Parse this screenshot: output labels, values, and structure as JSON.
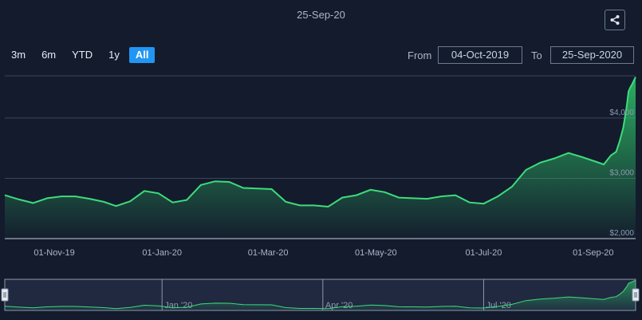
{
  "header": {
    "date": "25-Sep-20",
    "share_icon": "share-icon"
  },
  "range_selector": {
    "buttons": [
      {
        "label": "3m",
        "active": false
      },
      {
        "label": "6m",
        "active": false
      },
      {
        "label": "YTD",
        "active": false
      },
      {
        "label": "1y",
        "active": false
      },
      {
        "label": "All",
        "active": true
      }
    ],
    "from_label": "From",
    "from_value": "04-Oct-2019",
    "to_label": "To",
    "to_value": "25-Sep-2020"
  },
  "chart_data": {
    "type": "area",
    "title": "",
    "xlabel": "",
    "ylabel": "",
    "ylim": [
      2000,
      4700
    ],
    "y_ticks": [
      2000,
      3000,
      4000
    ],
    "y_tick_labels": [
      "$2,000",
      "$3,000",
      "$4,000"
    ],
    "x_tick_labels": [
      "01-Nov-19",
      "01-Jan-20",
      "01-Mar-20",
      "01-May-20",
      "01-Jul-20",
      "01-Sep-20"
    ],
    "x_tick_dates": [
      "2019-11-01",
      "2020-01-01",
      "2020-03-01",
      "2020-05-01",
      "2020-07-01",
      "2020-09-01"
    ],
    "x_range": [
      "2019-10-04",
      "2020-09-25"
    ],
    "grid": true,
    "legend": "none",
    "line_color": "#3ddc7a",
    "series": [
      {
        "values": [
          [
            "2019-10-04",
            2720
          ],
          [
            "2019-10-12",
            2650
          ],
          [
            "2019-10-20",
            2590
          ],
          [
            "2019-10-28",
            2670
          ],
          [
            "2019-11-05",
            2700
          ],
          [
            "2019-11-13",
            2700
          ],
          [
            "2019-11-21",
            2660
          ],
          [
            "2019-11-29",
            2610
          ],
          [
            "2019-12-06",
            2540
          ],
          [
            "2019-12-14",
            2620
          ],
          [
            "2019-12-22",
            2790
          ],
          [
            "2019-12-30",
            2750
          ],
          [
            "2020-01-07",
            2600
          ],
          [
            "2020-01-15",
            2640
          ],
          [
            "2020-01-23",
            2890
          ],
          [
            "2020-01-31",
            2950
          ],
          [
            "2020-02-08",
            2940
          ],
          [
            "2020-02-16",
            2840
          ],
          [
            "2020-02-24",
            2830
          ],
          [
            "2020-03-03",
            2820
          ],
          [
            "2020-03-11",
            2610
          ],
          [
            "2020-03-19",
            2550
          ],
          [
            "2020-03-27",
            2550
          ],
          [
            "2020-04-04",
            2530
          ],
          [
            "2020-04-12",
            2680
          ],
          [
            "2020-04-20",
            2720
          ],
          [
            "2020-04-28",
            2810
          ],
          [
            "2020-05-06",
            2770
          ],
          [
            "2020-05-14",
            2680
          ],
          [
            "2020-05-22",
            2670
          ],
          [
            "2020-05-30",
            2660
          ],
          [
            "2020-06-07",
            2700
          ],
          [
            "2020-06-15",
            2720
          ],
          [
            "2020-06-23",
            2600
          ],
          [
            "2020-07-01",
            2580
          ],
          [
            "2020-07-09",
            2700
          ],
          [
            "2020-07-17",
            2860
          ],
          [
            "2020-07-25",
            3140
          ],
          [
            "2020-08-02",
            3260
          ],
          [
            "2020-08-10",
            3330
          ],
          [
            "2020-08-18",
            3420
          ],
          [
            "2020-08-26",
            3350
          ],
          [
            "2020-09-03",
            3270
          ],
          [
            "2020-09-07",
            3230
          ],
          [
            "2020-09-11",
            3380
          ],
          [
            "2020-09-14",
            3440
          ],
          [
            "2020-09-16",
            3620
          ],
          [
            "2020-09-18",
            3840
          ],
          [
            "2020-09-20",
            4200
          ],
          [
            "2020-09-21",
            4440
          ],
          [
            "2020-09-22",
            4510
          ],
          [
            "2020-09-23",
            4560
          ],
          [
            "2020-09-25",
            4680
          ]
        ]
      }
    ],
    "navigator": {
      "x_tick_labels": [
        "Jan '20",
        "Apr '20",
        "Jul '20"
      ],
      "x_tick_dates": [
        "2020-01-01",
        "2020-04-01",
        "2020-07-01"
      ]
    }
  }
}
